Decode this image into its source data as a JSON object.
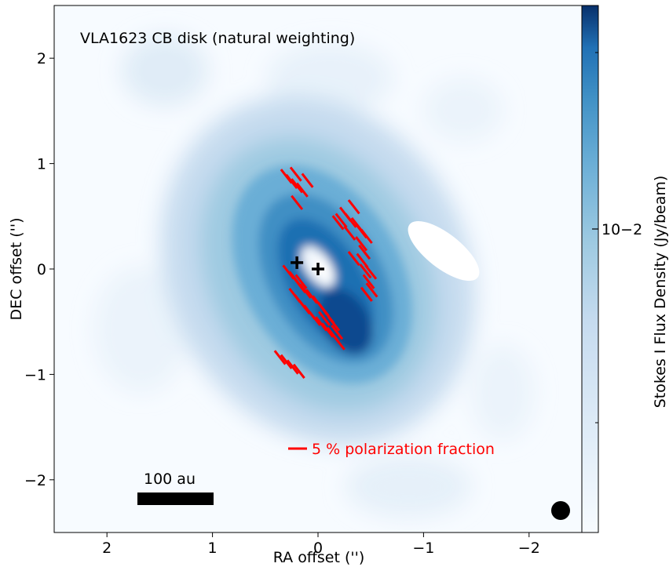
{
  "chart_data": {
    "type": "heatmap",
    "title": "VLA1623 CB disk (natural weighting)",
    "xlabel": "RA offset ('')",
    "ylabel": "DEC offset ('')",
    "colorbar_label": "Stokes I Flux Density (Jy/beam)",
    "colorbar_scale": "log",
    "colorbar_tick_labels": [
      "10−2"
    ],
    "colormap": "Blues",
    "xlim": [
      2.5,
      -2.5
    ],
    "ylim": [
      -2.5,
      2.5
    ],
    "x_ticks": [
      2,
      1,
      0,
      -1,
      -2
    ],
    "x_tick_labels": [
      "2",
      "1",
      "0",
      "−1",
      "−2"
    ],
    "y_ticks": [
      -2,
      -1,
      0,
      1,
      2
    ],
    "y_tick_labels": [
      "−2",
      "−1",
      "0",
      "1",
      "2"
    ],
    "grid": false,
    "sources": [
      {
        "marker": "+",
        "ra": 0.2,
        "dec": 0.06
      },
      {
        "marker": "+",
        "ra": 0.0,
        "dec": 0.0
      }
    ],
    "polarization_vectors": [
      [
        0.3,
        0.88
      ],
      [
        0.25,
        0.83
      ],
      [
        0.2,
        0.79
      ],
      [
        0.15,
        0.75
      ],
      [
        0.21,
        0.9
      ],
      [
        0.1,
        0.84
      ],
      [
        0.2,
        0.63
      ],
      [
        -0.26,
        0.52
      ],
      [
        -0.31,
        0.46
      ],
      [
        -0.37,
        0.42
      ],
      [
        -0.41,
        0.36
      ],
      [
        -0.46,
        0.31
      ],
      [
        -0.19,
        0.44
      ],
      [
        -0.3,
        0.34
      ],
      [
        -0.41,
        0.24
      ],
      [
        -0.44,
        0.16
      ],
      [
        -0.34,
        0.59
      ],
      [
        -0.22,
        0.46
      ],
      [
        0.28,
        -0.03
      ],
      [
        0.22,
        -0.09
      ],
      [
        0.17,
        -0.16
      ],
      [
        0.22,
        -0.25
      ],
      [
        0.17,
        -0.31
      ],
      [
        0.13,
        -0.36
      ],
      [
        0.08,
        -0.41
      ],
      [
        0.03,
        -0.47
      ],
      [
        -0.03,
        -0.52
      ],
      [
        -0.09,
        -0.58
      ],
      [
        0.16,
        -0.12
      ],
      [
        0.12,
        -0.21
      ],
      [
        0.06,
        -0.26
      ],
      [
        0.0,
        -0.32
      ],
      [
        -0.05,
        -0.38
      ],
      [
        -0.1,
        -0.45
      ],
      [
        -0.15,
        -0.52
      ],
      [
        -0.18,
        -0.6
      ],
      [
        -0.2,
        -0.7
      ],
      [
        -0.14,
        -0.62
      ],
      [
        -0.06,
        -0.47
      ],
      [
        -0.34,
        0.1
      ],
      [
        -0.42,
        0.08
      ],
      [
        -0.45,
        -0.02
      ],
      [
        -0.48,
        -0.12
      ],
      [
        -0.46,
        -0.24
      ],
      [
        -0.5,
        -0.03
      ],
      [
        -0.51,
        -0.2
      ],
      [
        0.36,
        -0.84
      ],
      [
        0.3,
        -0.88
      ],
      [
        0.24,
        -0.93
      ],
      [
        0.18,
        -0.97
      ]
    ],
    "legend": {
      "text": "5 % polarization fraction",
      "color": "#ff0000"
    },
    "scalebar": {
      "label": "100 au",
      "length_arcsec": 0.72
    },
    "beam": {
      "ra": -2.26,
      "dec": -2.3
    }
  }
}
